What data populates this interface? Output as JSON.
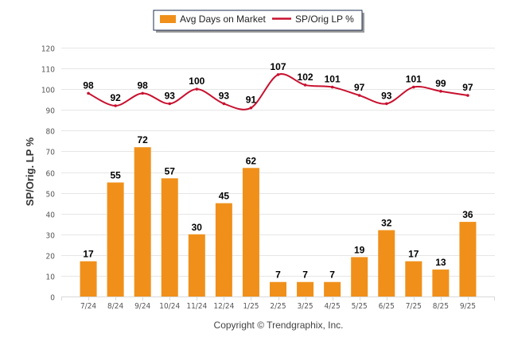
{
  "chart_data": {
    "type": "bar+line",
    "title": "",
    "xlabel": "",
    "ylabel": "SP/Orig. LP %",
    "ylim": [
      0,
      120
    ],
    "yticks": [
      0,
      10,
      20,
      30,
      40,
      50,
      60,
      70,
      80,
      90,
      100,
      110,
      120
    ],
    "grid": true,
    "legend_position": "top-center",
    "categories": [
      "7/24",
      "8/24",
      "9/24",
      "10/24",
      "11/24",
      "12/24",
      "1/25",
      "2/25",
      "3/25",
      "4/25",
      "5/25",
      "6/25",
      "7/25",
      "8/25",
      "9/25"
    ],
    "series": [
      {
        "name": "Avg Days on Market",
        "type": "bar",
        "color": "#f0901a",
        "values": [
          17,
          55,
          72,
          57,
          30,
          45,
          62,
          7,
          7,
          7,
          19,
          32,
          17,
          13,
          36
        ]
      },
      {
        "name": "SP/Orig LP %",
        "type": "line",
        "color": "#c8102e",
        "values": [
          98,
          92,
          98,
          93,
          100,
          93,
          91,
          107,
          102,
          101,
          97,
          93,
          101,
          99,
          97
        ]
      }
    ],
    "copyright": "Copyright © Trendgraphix, Inc."
  }
}
